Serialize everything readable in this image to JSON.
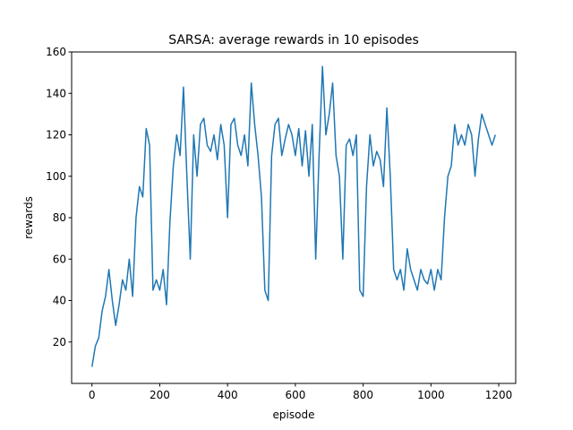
{
  "chart_data": {
    "type": "line",
    "title": "SARSA: average rewards in 10 episodes",
    "x_label": "episode",
    "y_label": "rewards",
    "x": [
      0,
      10,
      20,
      30,
      40,
      50,
      60,
      70,
      80,
      90,
      100,
      110,
      120,
      130,
      140,
      150,
      160,
      170,
      180,
      190,
      200,
      210,
      220,
      230,
      240,
      250,
      260,
      270,
      280,
      290,
      300,
      310,
      320,
      330,
      340,
      350,
      360,
      370,
      380,
      390,
      400,
      410,
      420,
      430,
      440,
      450,
      460,
      470,
      480,
      490,
      500,
      510,
      520,
      530,
      540,
      550,
      560,
      570,
      580,
      590,
      600,
      610,
      620,
      630,
      640,
      650,
      660,
      670,
      680,
      690,
      700,
      710,
      720,
      730,
      740,
      750,
      760,
      770,
      780,
      790,
      800,
      810,
      820,
      830,
      840,
      850,
      860,
      870,
      880,
      890,
      900,
      910,
      920,
      930,
      940,
      950,
      960,
      970,
      980,
      990,
      1000,
      1010,
      1020,
      1030,
      1040,
      1050,
      1060,
      1070,
      1080,
      1090,
      1100,
      1110,
      1120,
      1130,
      1140,
      1150,
      1160,
      1170,
      1180,
      1190
    ],
    "series": [
      {
        "color": "#1f77b4",
        "values": [
          8,
          18,
          22,
          35,
          42,
          55,
          40,
          28,
          38,
          50,
          45,
          60,
          42,
          80,
          95,
          90,
          123,
          115,
          45,
          50,
          45,
          55,
          38,
          78,
          105,
          120,
          110,
          143,
          100,
          60,
          120,
          100,
          125,
          128,
          115,
          112,
          120,
          108,
          125,
          115,
          80,
          125,
          128,
          115,
          110,
          120,
          105,
          145,
          125,
          110,
          90,
          45,
          40,
          110,
          125,
          128,
          110,
          118,
          125,
          120,
          110,
          123,
          105,
          122,
          100,
          125,
          60,
          110,
          153,
          120,
          130,
          145,
          110,
          100,
          60,
          115,
          118,
          110,
          120,
          45,
          42,
          95,
          120,
          105,
          112,
          108,
          95,
          133,
          100,
          55,
          50,
          55,
          45,
          65,
          55,
          50,
          45,
          55,
          50,
          48,
          55,
          45,
          55,
          50,
          80,
          100,
          105,
          125,
          115,
          120,
          115,
          125,
          120,
          100,
          118,
          130,
          125,
          120,
          115,
          120
        ]
      }
    ],
    "xlim": [
      -60,
      1250
    ],
    "ylim": [
      0,
      160
    ],
    "xticks": [
      0,
      200,
      400,
      600,
      800,
      1000,
      1200
    ],
    "yticks": [
      20,
      40,
      60,
      80,
      100,
      120,
      140,
      160
    ]
  }
}
